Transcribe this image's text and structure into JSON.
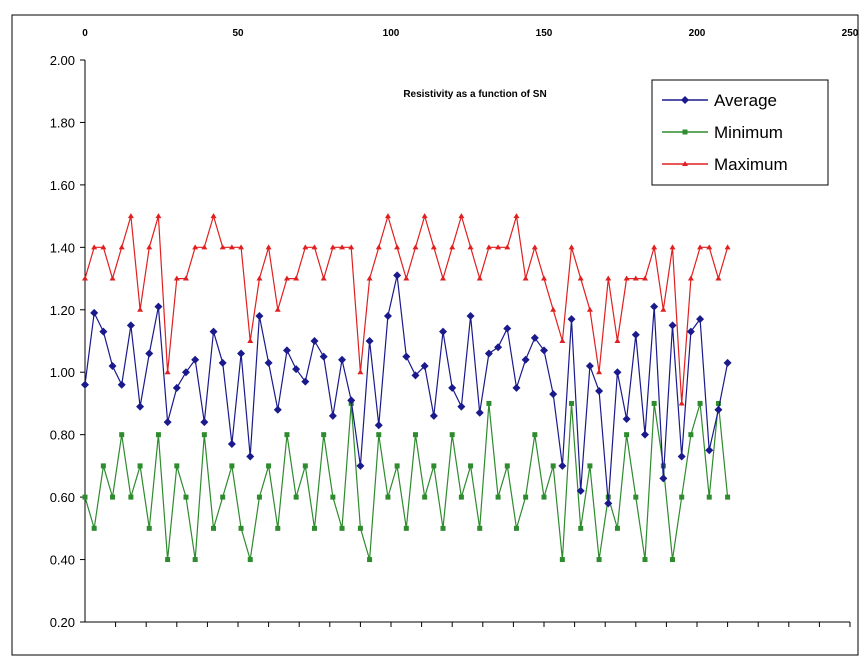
{
  "chart_data": {
    "type": "line",
    "title": "Resistivity as a function of SN",
    "xlabel": "",
    "ylabel": "",
    "xlim": [
      0,
      250
    ],
    "ylim": [
      0.2,
      2.0
    ],
    "x_ticks": [
      "0",
      "50",
      "100",
      "150",
      "200",
      "250"
    ],
    "y_ticks": [
      "0.20",
      "0.40",
      "0.60",
      "0.80",
      "1.00",
      "1.20",
      "1.40",
      "1.60",
      "1.80",
      "2.00"
    ],
    "legend_position": "top-right",
    "grid": false,
    "x": [
      0,
      3,
      6,
      9,
      12,
      15,
      18,
      21,
      24,
      27,
      30,
      33,
      36,
      39,
      42,
      45,
      48,
      51,
      54,
      57,
      60,
      63,
      66,
      69,
      72,
      75,
      78,
      81,
      84,
      87,
      90,
      93,
      96,
      99,
      102,
      105,
      108,
      111,
      114,
      117,
      120,
      123,
      126,
      129,
      132,
      135,
      138,
      141,
      144,
      147,
      150,
      153,
      156,
      159,
      162,
      165,
      168,
      171,
      174,
      177,
      180,
      183,
      186,
      189,
      192,
      195,
      198,
      201,
      204,
      207,
      210
    ],
    "series": [
      {
        "name": "Average",
        "color": "#1a1a8c",
        "marker": "diamond",
        "values": [
          0.96,
          1.19,
          1.13,
          1.02,
          0.96,
          1.15,
          0.89,
          1.06,
          1.21,
          0.84,
          0.95,
          1.0,
          1.04,
          0.84,
          1.13,
          1.03,
          0.77,
          1.06,
          0.73,
          1.18,
          1.03,
          0.88,
          1.07,
          1.01,
          0.97,
          1.1,
          1.05,
          0.86,
          1.04,
          0.91,
          0.7,
          1.1,
          0.83,
          1.18,
          1.31,
          1.05,
          0.99,
          1.02,
          0.86,
          1.13,
          0.95,
          0.89,
          1.18,
          0.87,
          1.06,
          1.08,
          1.14,
          0.95,
          1.04,
          1.11,
          1.07,
          0.93,
          0.7,
          1.17,
          0.62,
          1.02,
          0.94,
          0.58,
          1.0,
          0.85,
          1.12,
          0.8,
          1.21,
          0.66,
          1.15,
          0.73,
          1.13,
          1.17,
          0.75,
          0.88,
          1.03
        ]
      },
      {
        "name": "Minimum",
        "color": "#2e8b2e",
        "marker": "square",
        "values": [
          0.6,
          0.5,
          0.7,
          0.6,
          0.8,
          0.6,
          0.7,
          0.5,
          0.8,
          0.4,
          0.7,
          0.6,
          0.4,
          0.8,
          0.5,
          0.6,
          0.7,
          0.5,
          0.4,
          0.6,
          0.7,
          0.5,
          0.8,
          0.6,
          0.7,
          0.5,
          0.8,
          0.6,
          0.5,
          0.9,
          0.5,
          0.4,
          0.8,
          0.6,
          0.7,
          0.5,
          0.8,
          0.6,
          0.7,
          0.5,
          0.8,
          0.6,
          0.7,
          0.5,
          0.9,
          0.6,
          0.7,
          0.5,
          0.6,
          0.8,
          0.6,
          0.7,
          0.4,
          0.9,
          0.5,
          0.7,
          0.4,
          0.6,
          0.5,
          0.8,
          0.6,
          0.4,
          0.9,
          0.7,
          0.4,
          0.6,
          0.8,
          0.9,
          0.6,
          0.9,
          0.6
        ]
      },
      {
        "name": "Maximum",
        "color": "#e02020",
        "marker": "triangle",
        "values": [
          1.3,
          1.4,
          1.4,
          1.3,
          1.4,
          1.5,
          1.2,
          1.4,
          1.5,
          1.0,
          1.3,
          1.3,
          1.4,
          1.4,
          1.5,
          1.4,
          1.4,
          1.4,
          1.1,
          1.3,
          1.4,
          1.2,
          1.3,
          1.3,
          1.4,
          1.4,
          1.3,
          1.4,
          1.4,
          1.4,
          1.0,
          1.3,
          1.4,
          1.5,
          1.4,
          1.3,
          1.4,
          1.5,
          1.4,
          1.3,
          1.4,
          1.5,
          1.4,
          1.3,
          1.4,
          1.4,
          1.4,
          1.5,
          1.3,
          1.4,
          1.3,
          1.2,
          1.1,
          1.4,
          1.3,
          1.2,
          1.0,
          1.3,
          1.1,
          1.3,
          1.3,
          1.3,
          1.4,
          1.2,
          1.4,
          0.9,
          1.3,
          1.4,
          1.4,
          1.3,
          1.4
        ]
      }
    ]
  }
}
